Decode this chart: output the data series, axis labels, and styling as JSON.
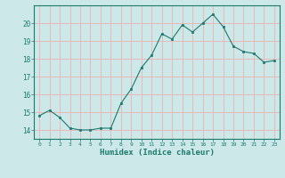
{
  "x": [
    0,
    1,
    2,
    3,
    4,
    5,
    6,
    7,
    8,
    9,
    10,
    11,
    12,
    13,
    14,
    15,
    16,
    17,
    18,
    19,
    20,
    21,
    22,
    23
  ],
  "y": [
    14.8,
    15.1,
    14.7,
    14.1,
    14.0,
    14.0,
    14.1,
    14.1,
    15.5,
    16.3,
    17.5,
    18.2,
    19.4,
    19.1,
    19.9,
    19.5,
    20.0,
    20.5,
    19.8,
    18.7,
    18.4,
    18.3,
    17.8,
    17.9
  ],
  "line_color": "#1a7a6e",
  "marker_color": "#1a7a6e",
  "bg_color": "#cce8e8",
  "grid_color": "#e8b8b8",
  "xlabel": "Humidex (Indice chaleur)",
  "ylim": [
    13.5,
    21.0
  ],
  "xlim": [
    -0.5,
    23.5
  ],
  "yticks": [
    14,
    15,
    16,
    17,
    18,
    19,
    20
  ],
  "xtick_labels": [
    "0",
    "1",
    "2",
    "3",
    "4",
    "5",
    "6",
    "7",
    "8",
    "9",
    "10",
    "11",
    "12",
    "13",
    "14",
    "15",
    "16",
    "17",
    "18",
    "19",
    "20",
    "21",
    "22",
    "23"
  ]
}
